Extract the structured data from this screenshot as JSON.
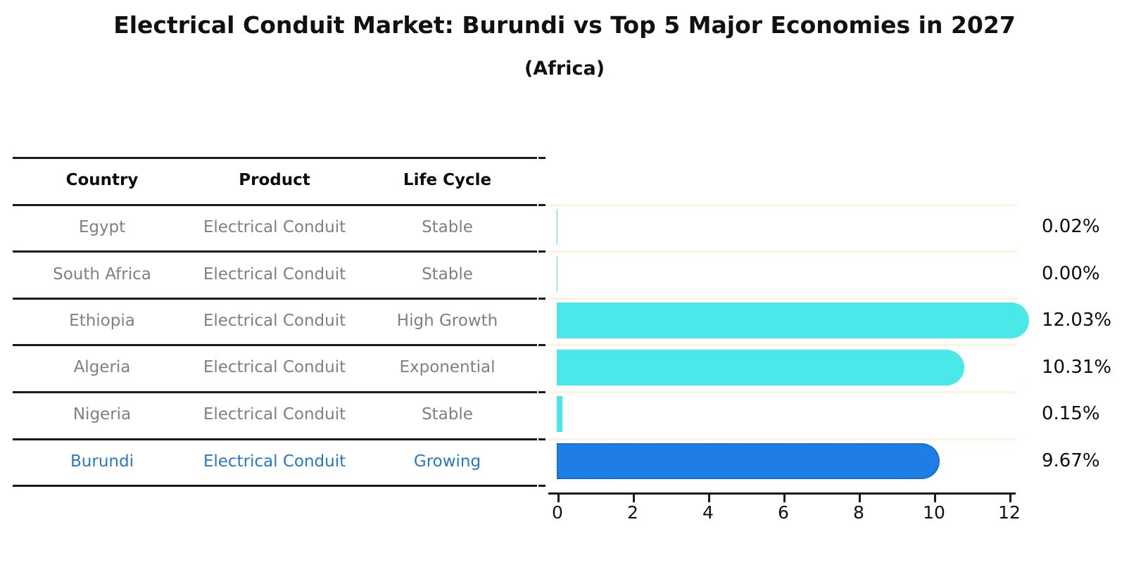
{
  "title": "Electrical Conduit Market: Burundi vs Top 5 Major Economies in 2027",
  "subtitle": "(Africa)",
  "table": {
    "headers": {
      "country": "Country",
      "product": "Product",
      "life_cycle": "Life Cycle"
    },
    "rows": [
      {
        "country": "Egypt",
        "product": "Electrical Conduit",
        "life_cycle": "Stable",
        "highlight": false
      },
      {
        "country": "South Africa",
        "product": "Electrical Conduit",
        "life_cycle": "Stable",
        "highlight": false
      },
      {
        "country": "Ethiopia",
        "product": "Electrical Conduit",
        "life_cycle": "High Growth",
        "highlight": false
      },
      {
        "country": "Algeria",
        "product": "Electrical Conduit",
        "life_cycle": "Exponential",
        "highlight": false
      },
      {
        "country": "Nigeria",
        "product": "Electrical Conduit",
        "life_cycle": "Stable",
        "highlight": false
      },
      {
        "country": "Burundi",
        "product": "Electrical Conduit",
        "life_cycle": "Growing",
        "highlight": true
      }
    ]
  },
  "chart_data": {
    "type": "bar",
    "orientation": "horizontal",
    "title": "Electrical Conduit Market: Burundi vs Top 5 Major Economies in 2027 (Africa)",
    "categories": [
      "Egypt",
      "South Africa",
      "Ethiopia",
      "Algeria",
      "Nigeria",
      "Burundi"
    ],
    "values": [
      0.02,
      0.0,
      12.03,
      10.31,
      0.15,
      9.67
    ],
    "value_labels": [
      "0.02%",
      "0.00%",
      "12.03%",
      "10.31%",
      "0.15%",
      "9.67%"
    ],
    "unit": "percent",
    "xlim": [
      0,
      12.5
    ],
    "x_ticks": [
      0,
      2,
      4,
      6,
      8,
      10,
      12
    ],
    "x_tick_labels": [
      "0",
      "2",
      "4",
      "6",
      "8",
      "10",
      "12"
    ],
    "grid": "row-separators-only",
    "legend": "none",
    "highlight_index": 5,
    "bar_color": "#4AE8E8",
    "highlight_bar_color": "#1E7EE5",
    "highlight_border_color": "#1060BD"
  },
  "colors": {
    "header_text": "#0D0D0D",
    "row_text": "#808080",
    "highlight_text": "#2878C8",
    "axis": "#1A1A1A",
    "gridline": "#FAF3DF",
    "background": "#FFFFFF"
  }
}
